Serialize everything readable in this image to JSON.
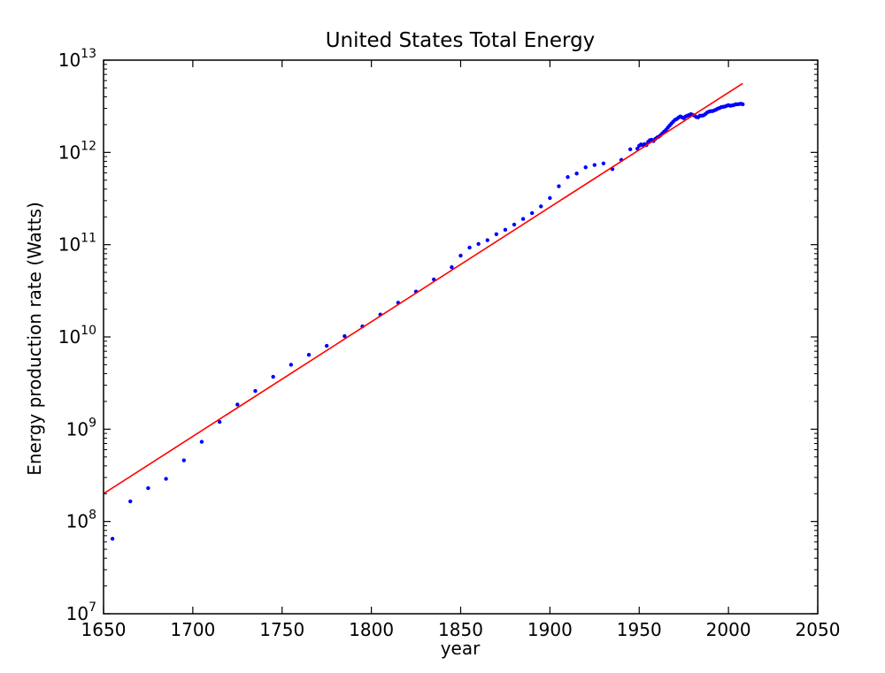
{
  "chart_data": {
    "type": "scatter",
    "title": "United States Total Energy",
    "xlabel": "year",
    "ylabel": "Energy production rate (Watts)",
    "xlim": [
      1650,
      2050
    ],
    "ylim": [
      10000000,
      10000000000000
    ],
    "yscale": "log",
    "xticks": [
      1650,
      1700,
      1750,
      1800,
      1850,
      1900,
      1950,
      2000,
      2050
    ],
    "yticks": [
      {
        "base": "10",
        "exp": "7",
        "value": 10000000
      },
      {
        "base": "10",
        "exp": "8",
        "value": 100000000
      },
      {
        "base": "10",
        "exp": "9",
        "value": 1000000000
      },
      {
        "base": "10",
        "exp": "10",
        "value": 10000000000
      },
      {
        "base": "10",
        "exp": "11",
        "value": 100000000000
      },
      {
        "base": "10",
        "exp": "12",
        "value": 1000000000000
      },
      {
        "base": "10",
        "exp": "13",
        "value": 10000000000000
      }
    ],
    "grid": false,
    "series": [
      {
        "kind": "points",
        "color": "#0000ff",
        "points": [
          [
            1655,
            65000000.0
          ],
          [
            1665,
            165000000.0
          ],
          [
            1675,
            230000000.0
          ],
          [
            1685,
            290000000.0
          ],
          [
            1695,
            460000000.0
          ],
          [
            1705,
            730000000.0
          ],
          [
            1715,
            1200000000.0
          ],
          [
            1725,
            1850000000.0
          ],
          [
            1735,
            2600000000.0
          ],
          [
            1745,
            3700000000.0
          ],
          [
            1755,
            5000000000.0
          ],
          [
            1765,
            6400000000.0
          ],
          [
            1775,
            8000000000.0
          ],
          [
            1785,
            10200000000.0
          ],
          [
            1795,
            13000000000.0
          ],
          [
            1805,
            17500000000.0
          ],
          [
            1815,
            23500000000.0
          ],
          [
            1825,
            31000000000.0
          ],
          [
            1835,
            42000000000.0
          ],
          [
            1845,
            57000000000.0
          ],
          [
            1850,
            76000000000.0
          ],
          [
            1855,
            93000000000.0
          ],
          [
            1860,
            102000000000.0
          ],
          [
            1865,
            112000000000.0
          ],
          [
            1870,
            130000000000.0
          ],
          [
            1875,
            145000000000.0
          ],
          [
            1880,
            165000000000.0
          ],
          [
            1885,
            190000000000.0
          ],
          [
            1890,
            220000000000.0
          ],
          [
            1895,
            260000000000.0
          ],
          [
            1900,
            320000000000.0
          ],
          [
            1905,
            430000000000.0
          ],
          [
            1910,
            540000000000.0
          ],
          [
            1915,
            590000000000.0
          ],
          [
            1920,
            690000000000.0
          ],
          [
            1925,
            730000000000.0
          ],
          [
            1930,
            760000000000.0
          ],
          [
            1935,
            660000000000.0
          ],
          [
            1940,
            830000000000.0
          ],
          [
            1945,
            1080000000000.0
          ],
          [
            1949,
            1100000000000.0
          ],
          [
            1950,
            1180000000000.0
          ],
          [
            1951,
            1220000000000.0
          ],
          [
            1952,
            1200000000000.0
          ],
          [
            1953,
            1230000000000.0
          ],
          [
            1954,
            1200000000000.0
          ],
          [
            1955,
            1300000000000.0
          ],
          [
            1956,
            1360000000000.0
          ],
          [
            1957,
            1370000000000.0
          ],
          [
            1958,
            1330000000000.0
          ],
          [
            1959,
            1400000000000.0
          ],
          [
            1960,
            1450000000000.0
          ],
          [
            1961,
            1480000000000.0
          ],
          [
            1962,
            1540000000000.0
          ],
          [
            1963,
            1610000000000.0
          ],
          [
            1964,
            1680000000000.0
          ],
          [
            1965,
            1750000000000.0
          ],
          [
            1966,
            1850000000000.0
          ],
          [
            1967,
            1950000000000.0
          ],
          [
            1968,
            2050000000000.0
          ],
          [
            1969,
            2150000000000.0
          ],
          [
            1970,
            2250000000000.0
          ],
          [
            1971,
            2300000000000.0
          ],
          [
            1972,
            2380000000000.0
          ],
          [
            1973,
            2450000000000.0
          ],
          [
            1974,
            2400000000000.0
          ],
          [
            1975,
            2350000000000.0
          ],
          [
            1976,
            2450000000000.0
          ],
          [
            1977,
            2500000000000.0
          ],
          [
            1978,
            2550000000000.0
          ],
          [
            1979,
            2600000000000.0
          ],
          [
            1980,
            2550000000000.0
          ],
          [
            1981,
            2500000000000.0
          ],
          [
            1982,
            2420000000000.0
          ],
          [
            1983,
            2400000000000.0
          ],
          [
            1984,
            2500000000000.0
          ],
          [
            1985,
            2500000000000.0
          ],
          [
            1986,
            2520000000000.0
          ],
          [
            1987,
            2600000000000.0
          ],
          [
            1988,
            2700000000000.0
          ],
          [
            1989,
            2760000000000.0
          ],
          [
            1990,
            2800000000000.0
          ],
          [
            1991,
            2800000000000.0
          ],
          [
            1992,
            2850000000000.0
          ],
          [
            1993,
            2900000000000.0
          ],
          [
            1994,
            2980000000000.0
          ],
          [
            1995,
            3020000000000.0
          ],
          [
            1996,
            3100000000000.0
          ],
          [
            1997,
            3120000000000.0
          ],
          [
            1998,
            3140000000000.0
          ],
          [
            1999,
            3200000000000.0
          ],
          [
            2000,
            3250000000000.0
          ],
          [
            2001,
            3200000000000.0
          ],
          [
            2002,
            3230000000000.0
          ],
          [
            2003,
            3260000000000.0
          ],
          [
            2004,
            3320000000000.0
          ],
          [
            2005,
            3320000000000.0
          ],
          [
            2006,
            3340000000000.0
          ],
          [
            2007,
            3370000000000.0
          ],
          [
            2008,
            3320000000000.0
          ]
        ]
      },
      {
        "kind": "line",
        "color": "#ff0000",
        "points": [
          [
            1650,
            200000000.0
          ],
          [
            2008,
            5600000000000.0
          ]
        ]
      }
    ]
  }
}
